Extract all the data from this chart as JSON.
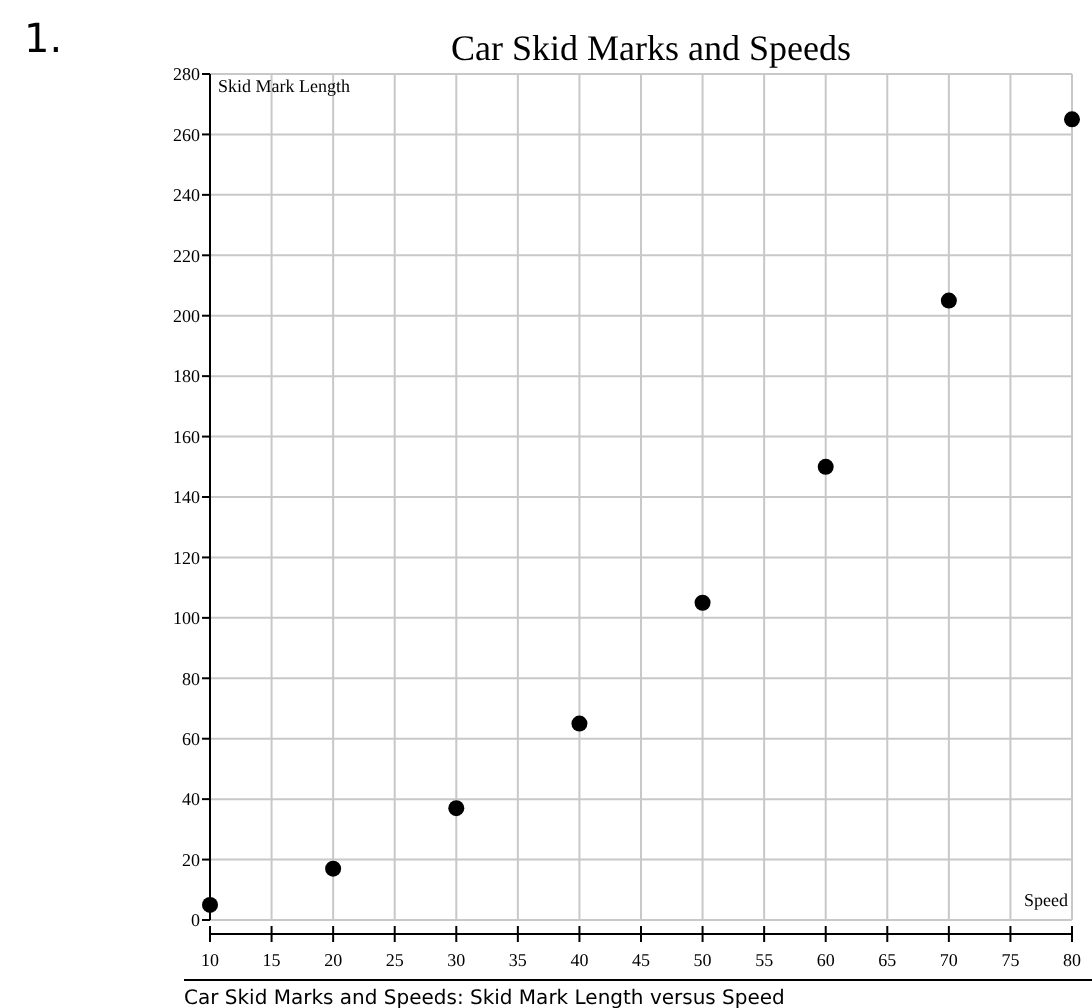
{
  "chart_data": {
    "type": "scatter",
    "title": "Car Skid Marks and Speeds",
    "xlabel": "Speed",
    "ylabel": "Skid Mark Length",
    "x": [
      10,
      20,
      30,
      40,
      50,
      60,
      70,
      80
    ],
    "series": [
      {
        "color": "#000000",
        "values": [
          5,
          17,
          37,
          65,
          105,
          150,
          205,
          265
        ]
      }
    ],
    "xlim": [
      10,
      80
    ],
    "xticks": [
      10,
      15,
      20,
      25,
      30,
      35,
      40,
      45,
      50,
      55,
      60,
      65,
      70,
      75,
      80
    ],
    "ylim": [
      0,
      280
    ],
    "yticks": [
      0,
      20,
      40,
      60,
      80,
      100,
      120,
      140,
      160,
      180,
      200,
      220,
      240,
      260,
      280
    ],
    "grid": true,
    "marker": "circle",
    "annotations": [
      "1.",
      "Car Skid Marks and Speeds: Skid Mark Length versus Speed"
    ]
  }
}
